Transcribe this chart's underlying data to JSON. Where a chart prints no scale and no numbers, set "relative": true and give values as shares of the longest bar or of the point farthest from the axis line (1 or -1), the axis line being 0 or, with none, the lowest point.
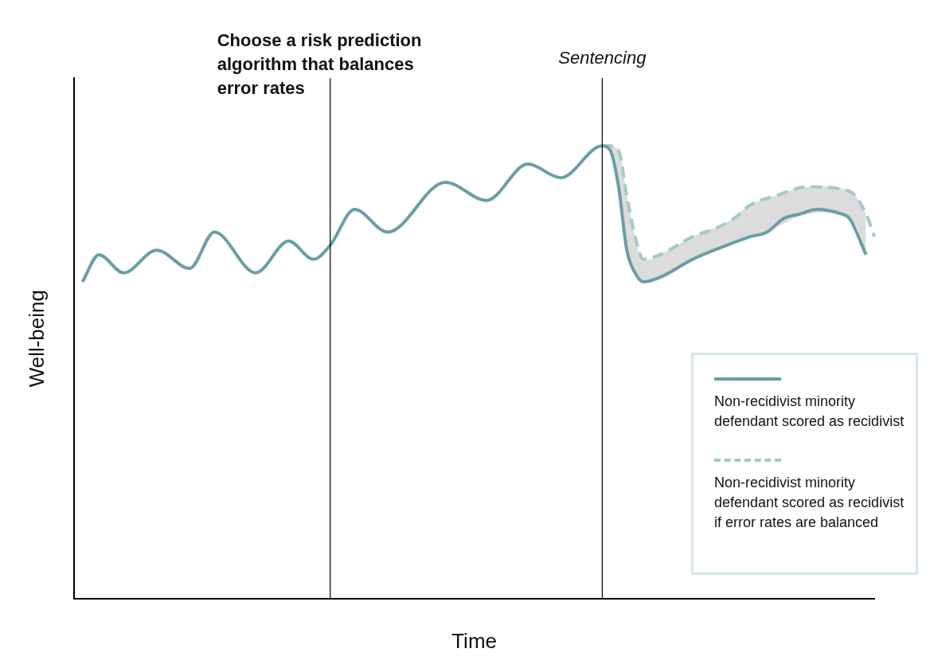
{
  "chart_data": {
    "type": "line",
    "relative": true,
    "xlabel": "Time",
    "ylabel": "Well-being",
    "grid": false,
    "marker": "none",
    "legend": "bottom right",
    "categories": [
      null,
      null,
      null,
      null,
      null,
      null,
      null,
      null,
      null,
      null,
      null,
      null,
      null,
      null,
      null,
      null,
      null,
      null,
      null,
      null,
      null,
      null,
      null,
      null,
      null,
      null,
      null,
      null,
      null,
      null,
      null,
      null,
      null,
      null,
      null,
      null,
      null,
      null,
      null,
      null,
      null,
      null,
      null,
      null,
      null,
      null,
      null,
      null,
      null,
      null,
      null,
      null,
      null,
      null,
      null,
      null,
      null,
      null,
      null,
      null,
      null,
      null,
      null,
      null,
      null,
      null,
      null,
      null,
      null,
      null,
      null,
      null,
      null,
      null,
      null,
      null,
      null,
      null,
      null,
      null,
      null,
      null,
      null,
      null,
      null,
      null,
      null,
      null,
      null,
      null,
      null,
      null,
      null,
      null,
      null,
      null,
      null,
      null
    ],
    "annotations": [
      "Choose a risk prediction algorithm that balances error rates",
      "Sentencing"
    ],
    "series": [
      {
        "name": "Non-recidivist minority defendant scored as recidivist",
        "color": "#6a9ea6",
        "line_style": "solid",
        "values": [
          null,
          0.7,
          null,
          0.76,
          null,
          null,
          0.72,
          null,
          null,
          null,
          0.77,
          null,
          null,
          null,
          0.73,
          null,
          null,
          0.81,
          null,
          null,
          null,
          null,
          0.72,
          null,
          null,
          null,
          0.79,
          null,
          null,
          0.75,
          null,
          0.78,
          null,
          null,
          0.86,
          null,
          null,
          null,
          0.81,
          null,
          null,
          null,
          null,
          null,
          null,
          0.92,
          null,
          null,
          null,
          null,
          0.88,
          null,
          null,
          null,
          null,
          0.96,
          null,
          null,
          null,
          0.93,
          null,
          null,
          null,
          null,
          1,
          0.99,
          0.91,
          0.77,
          0.72,
          0.7,
          null,
          0.71,
          null,
          null,
          null,
          0.75,
          null,
          null,
          null,
          0.78,
          null,
          null,
          0.8,
          null,
          0.81,
          null,
          0.84,
          null,
          0.85,
          null,
          0.86,
          null,
          null,
          0.85,
          0.84,
          null,
          0.76,
          null
        ]
      },
      {
        "name": "Non-recidivist minority defendant scored as recidivist if error rates are balanced",
        "color": "#a3c8cc",
        "line_style": "dashed",
        "values": [
          null,
          null,
          null,
          null,
          null,
          null,
          null,
          null,
          null,
          null,
          null,
          null,
          null,
          null,
          null,
          null,
          null,
          null,
          null,
          null,
          null,
          null,
          null,
          null,
          null,
          null,
          null,
          null,
          null,
          null,
          null,
          null,
          null,
          null,
          null,
          null,
          null,
          null,
          null,
          null,
          null,
          null,
          null,
          null,
          null,
          null,
          null,
          null,
          null,
          null,
          null,
          null,
          null,
          null,
          null,
          null,
          null,
          null,
          null,
          null,
          null,
          null,
          null,
          null,
          1,
          1,
          0.99,
          0.89,
          0.8,
          0.75,
          null,
          0.76,
          null,
          null,
          null,
          0.8,
          null,
          null,
          0.82,
          null,
          0.84,
          null,
          0.87,
          null,
          null,
          0.89,
          null,
          null,
          null,
          0.91,
          null,
          null,
          null,
          null,
          0.9,
          null,
          0.85,
          0.8
        ],
        "lower": [
          null,
          null,
          null,
          null,
          null,
          null,
          null,
          null,
          null,
          null,
          null,
          null,
          null,
          null,
          null,
          null,
          null,
          null,
          null,
          null,
          null,
          null,
          null,
          null,
          null,
          null,
          null,
          null,
          null,
          null,
          null,
          null,
          null,
          null,
          null,
          null,
          null,
          null,
          null,
          null,
          null,
          null,
          null,
          null,
          null,
          null,
          null,
          null,
          null,
          null,
          null,
          null,
          null,
          null,
          null,
          null,
          null,
          null,
          null,
          null,
          null,
          null,
          null,
          null,
          1,
          0.99,
          0.91,
          0.77,
          0.72,
          0.7,
          null,
          0.71,
          null,
          null,
          null,
          0.75,
          null,
          null,
          null,
          0.78,
          null,
          null,
          0.8,
          null,
          null,
          0.82,
          null,
          null,
          null,
          0.85,
          null,
          null,
          null,
          null,
          0.84,
          null,
          0.76,
          null
        ],
        "upper": [
          null,
          null,
          null,
          null,
          null,
          null,
          null,
          null,
          null,
          null,
          null,
          null,
          null,
          null,
          null,
          null,
          null,
          null,
          null,
          null,
          null,
          null,
          null,
          null,
          null,
          null,
          null,
          null,
          null,
          null,
          null,
          null,
          null,
          null,
          null,
          null,
          null,
          null,
          null,
          null,
          null,
          null,
          null,
          null,
          null,
          null,
          null,
          null,
          null,
          null,
          null,
          null,
          null,
          null,
          null,
          null,
          null,
          null,
          null,
          null,
          null,
          null,
          null,
          null,
          1,
          1,
          0.99,
          0.89,
          0.8,
          0.75,
          null,
          0.76,
          null,
          null,
          null,
          0.8,
          null,
          null,
          null,
          0.83,
          null,
          null,
          0.87,
          null,
          null,
          0.89,
          null,
          null,
          null,
          0.91,
          null,
          null,
          null,
          null,
          0.9,
          null,
          0.85,
          null
        ]
      }
    ]
  }
}
